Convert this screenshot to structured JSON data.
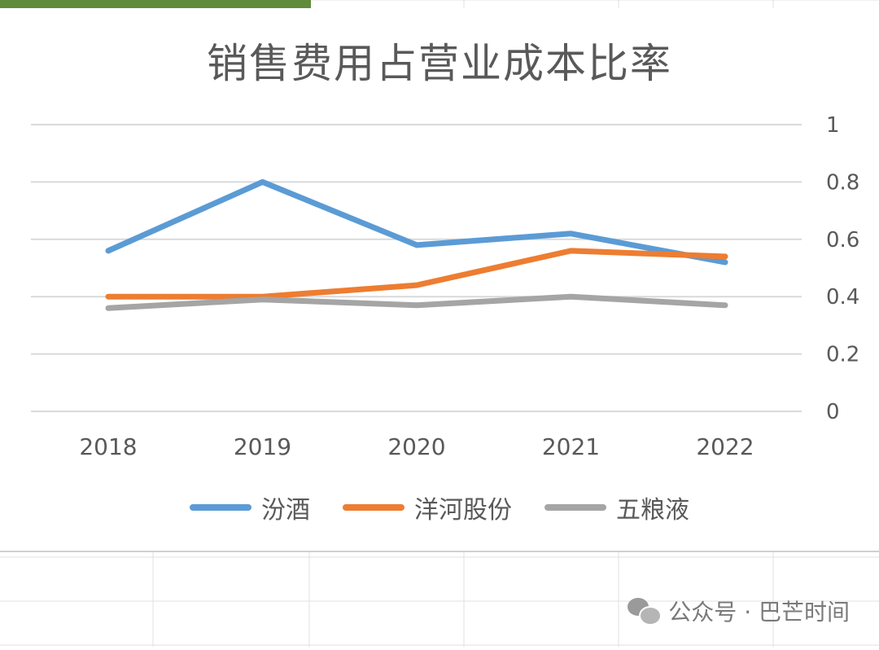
{
  "chart_data": {
    "type": "line",
    "title": "销售费用占营业成本比率",
    "categories": [
      "2018",
      "2019",
      "2020",
      "2021",
      "2022"
    ],
    "series": [
      {
        "name": "汾酒",
        "color": "#5b9bd5",
        "values": [
          0.56,
          0.8,
          0.58,
          0.62,
          0.52
        ]
      },
      {
        "name": "洋河股份",
        "color": "#ed7d31",
        "values": [
          0.4,
          0.4,
          0.44,
          0.56,
          0.54
        ]
      },
      {
        "name": "五粮液",
        "color": "#a5a5a5",
        "values": [
          0.36,
          0.39,
          0.37,
          0.4,
          0.37
        ]
      }
    ],
    "ylim": [
      0,
      1
    ],
    "yticks": [
      "0",
      "0.2",
      "0.4",
      "0.6",
      "0.8",
      "1"
    ],
    "y_axis_side": "right",
    "grid": true,
    "legend_position": "bottom"
  },
  "watermark": {
    "icon": "wechat-icon",
    "text": "公众号 · 巴芒时间"
  }
}
